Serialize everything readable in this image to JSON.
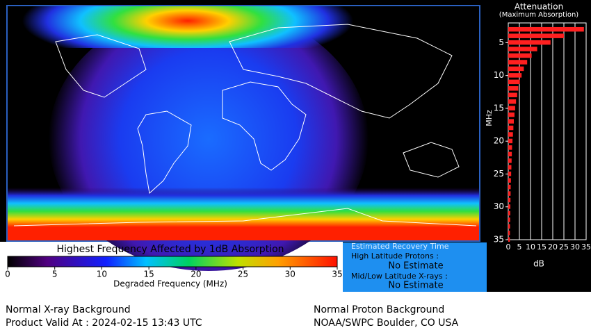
{
  "colorbar": {
    "title": "Highest Frequency Affected by 1dB Absorption",
    "lim": [
      0,
      35
    ],
    "ticks": [
      0,
      5,
      10,
      15,
      20,
      25,
      30,
      35
    ],
    "label": "Degraded Frequency (MHz)"
  },
  "recovery": {
    "title": "Estimated Recovery Time",
    "high_label": "High Latitude Protons :",
    "high_value": "No Estimate",
    "low_label": "Mid/Low Latitude X-rays :",
    "low_value": "No Estimate"
  },
  "footer": {
    "xray": "Normal X-ray Background",
    "valid": "Product Valid At : 2024-02-15 13:43 UTC",
    "proton": "Normal Proton Background",
    "source": "NOAA/SWPC Boulder, CO USA"
  },
  "chart_data": {
    "type": "bar",
    "orientation": "horizontal",
    "title": "Attenuation",
    "subtitle": "(Maximum Absorption)",
    "y": [
      3,
      4,
      5,
      6,
      7,
      8,
      9,
      10,
      11,
      12,
      13,
      14,
      15,
      16,
      17,
      18,
      19,
      20,
      21,
      22,
      23,
      24,
      25,
      26,
      27,
      28,
      29,
      30,
      31,
      32,
      33,
      34,
      35
    ],
    "values": [
      34,
      25,
      19,
      13,
      10.5,
      8.5,
      7,
      6,
      5.2,
      4.5,
      4,
      3.5,
      3.1,
      2.8,
      2.5,
      2.3,
      2.1,
      1.9,
      1.7,
      1.6,
      1.5,
      1.4,
      1.3,
      1.2,
      1.1,
      1.05,
      1,
      0.95,
      0.9,
      0.85,
      0.8,
      0.75,
      0.7
    ],
    "color": "#ff2020",
    "xlim": [
      0,
      35
    ],
    "xticks": [
      0,
      5,
      10,
      15,
      20,
      25,
      30,
      35
    ],
    "ylim": [
      2,
      35
    ],
    "yticks": [
      5,
      10,
      15,
      20,
      25,
      30,
      35
    ],
    "xlabel": "dB",
    "ylabel": "MHz",
    "grid": true
  }
}
